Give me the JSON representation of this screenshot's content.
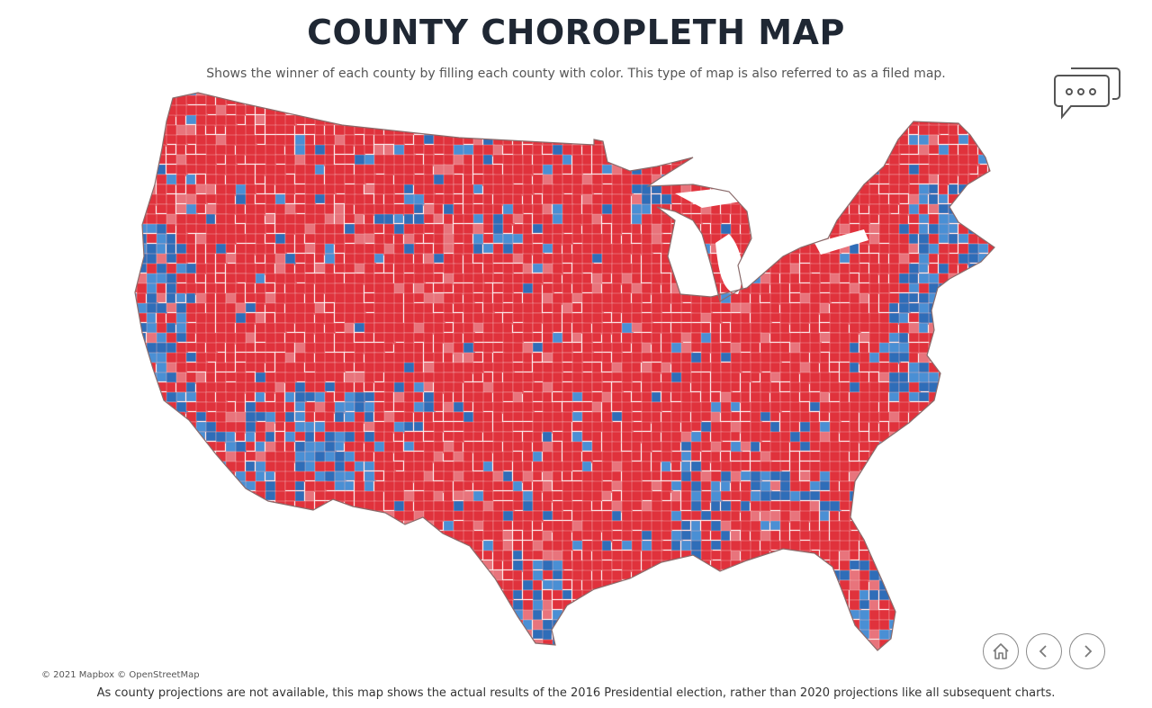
{
  "page": {
    "title": "COUNTY CHOROPLETH MAP",
    "subtitle": "Shows the winner of each county by filling each county with color. This type of map is also referred to as a filed map.",
    "attribution": "© 2021 Mapbox © OpenStreetMap",
    "footnote": "As county projections are not available, this map shows the actual results of the 2016 Presidential election, rather than 2020 projections like all subsequent charts."
  },
  "map": {
    "type": "county choropleth",
    "colors": {
      "republican": "#e0323c",
      "republican_light": "#e8747c",
      "democrat": "#2f6db8",
      "democrat_light": "#4a8fd4",
      "border": "#f3b8bb"
    }
  },
  "icons": {
    "comment": "comment-bubbles-icon",
    "home": "home-icon",
    "prev": "chevron-left-icon",
    "next": "chevron-right-icon"
  }
}
